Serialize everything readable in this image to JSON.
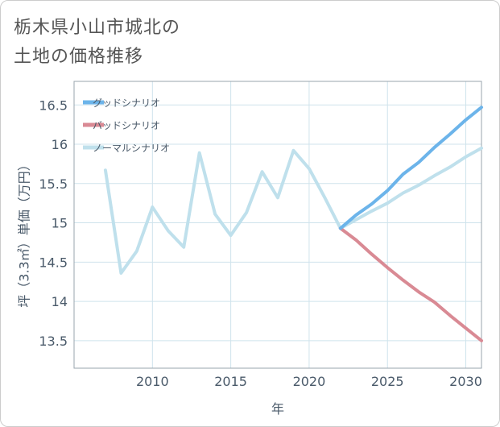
{
  "title_lines": [
    "栃木県小山市城北の",
    "土地の価格推移"
  ],
  "chart_data": {
    "type": "line",
    "title": "栃木県小山市城北の土地の価格推移",
    "xlabel": "年",
    "ylabel": "坪（3.3㎡）単価（万円）",
    "xlim": [
      2005,
      2031
    ],
    "ylim": [
      13.15,
      16.8
    ],
    "xticks": [
      2010,
      2015,
      2020,
      2025,
      2030
    ],
    "yticks": [
      13.5,
      14,
      14.5,
      15,
      15.5,
      16,
      16.5
    ],
    "ytick_labels": [
      "13.5",
      "14",
      "14.5",
      "15",
      "15.5",
      "16",
      "16.5"
    ],
    "grid": true,
    "legend_position": "top-left",
    "series": [
      {
        "name": "グッドシナリオ",
        "color": "#6cb4ea",
        "x": [
          2022,
          2023,
          2024,
          2025,
          2026,
          2027,
          2028,
          2029,
          2030,
          2031
        ],
        "values": [
          14.93,
          15.1,
          15.24,
          15.41,
          15.62,
          15.77,
          15.96,
          16.13,
          16.31,
          16.47
        ]
      },
      {
        "name": "バッドシナリオ",
        "color": "#d98a94",
        "x": [
          2022,
          2023,
          2024,
          2025,
          2026,
          2027,
          2028,
          2029,
          2030,
          2031
        ],
        "values": [
          14.93,
          14.78,
          14.6,
          14.43,
          14.27,
          14.12,
          13.99,
          13.82,
          13.66,
          13.5
        ]
      },
      {
        "name": "ノーマルシナリオ",
        "color": "#bfe0ec",
        "x": [
          2007,
          2008,
          2009,
          2010,
          2011,
          2012,
          2013,
          2014,
          2015,
          2016,
          2017,
          2018,
          2019,
          2020,
          2021,
          2022,
          2023,
          2024,
          2025,
          2026,
          2027,
          2028,
          2029,
          2030,
          2031
        ],
        "values": [
          15.67,
          14.36,
          14.64,
          15.2,
          14.9,
          14.69,
          15.89,
          15.11,
          14.84,
          15.13,
          15.65,
          15.32,
          15.92,
          15.69,
          15.32,
          14.93,
          15.04,
          15.15,
          15.25,
          15.38,
          15.48,
          15.6,
          15.71,
          15.84,
          15.95
        ]
      }
    ]
  }
}
